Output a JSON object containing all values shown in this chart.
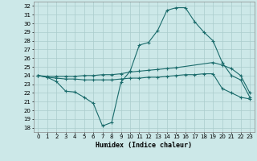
{
  "xlabel": "Humidex (Indice chaleur)",
  "bg_color": "#cce8e8",
  "grid_color": "#aacccc",
  "line_color": "#1a6b6b",
  "xlim": [
    -0.5,
    23.5
  ],
  "ylim": [
    17.5,
    32.5
  ],
  "xticks": [
    0,
    1,
    2,
    3,
    4,
    5,
    6,
    7,
    8,
    9,
    10,
    11,
    12,
    13,
    14,
    15,
    16,
    17,
    18,
    19,
    20,
    21,
    22,
    23
  ],
  "yticks": [
    18,
    19,
    20,
    21,
    22,
    23,
    24,
    25,
    26,
    27,
    28,
    29,
    30,
    31,
    32
  ],
  "line1_x": [
    0,
    1,
    2,
    3,
    4,
    5,
    6,
    7,
    8,
    9,
    10,
    11,
    12,
    13,
    14,
    15,
    16,
    17,
    18,
    19,
    20,
    21,
    22,
    23
  ],
  "line1_y": [
    24.0,
    23.8,
    23.3,
    22.2,
    22.1,
    21.5,
    20.8,
    18.2,
    18.6,
    23.2,
    24.5,
    27.5,
    27.8,
    29.2,
    31.5,
    31.8,
    31.8,
    30.2,
    29.0,
    28.0,
    25.5,
    24.0,
    23.5,
    21.5
  ],
  "line2_x": [
    0,
    1,
    2,
    3,
    4,
    5,
    6,
    7,
    8,
    9,
    10,
    11,
    12,
    13,
    14,
    15,
    19,
    20,
    21,
    22,
    23
  ],
  "line2_y": [
    24.0,
    23.9,
    23.9,
    23.9,
    23.9,
    24.0,
    24.0,
    24.1,
    24.1,
    24.2,
    24.4,
    24.5,
    24.6,
    24.7,
    24.8,
    24.9,
    25.5,
    25.2,
    24.8,
    24.0,
    22.0
  ],
  "line3_x": [
    0,
    1,
    2,
    3,
    4,
    5,
    6,
    7,
    8,
    9,
    10,
    11,
    12,
    13,
    14,
    15,
    16,
    17,
    18,
    19,
    20,
    21,
    22,
    23
  ],
  "line3_y": [
    24.0,
    23.8,
    23.7,
    23.6,
    23.6,
    23.5,
    23.5,
    23.5,
    23.5,
    23.6,
    23.7,
    23.7,
    23.8,
    23.8,
    23.9,
    24.0,
    24.1,
    24.1,
    24.2,
    24.2,
    22.5,
    22.0,
    21.5,
    21.3
  ]
}
